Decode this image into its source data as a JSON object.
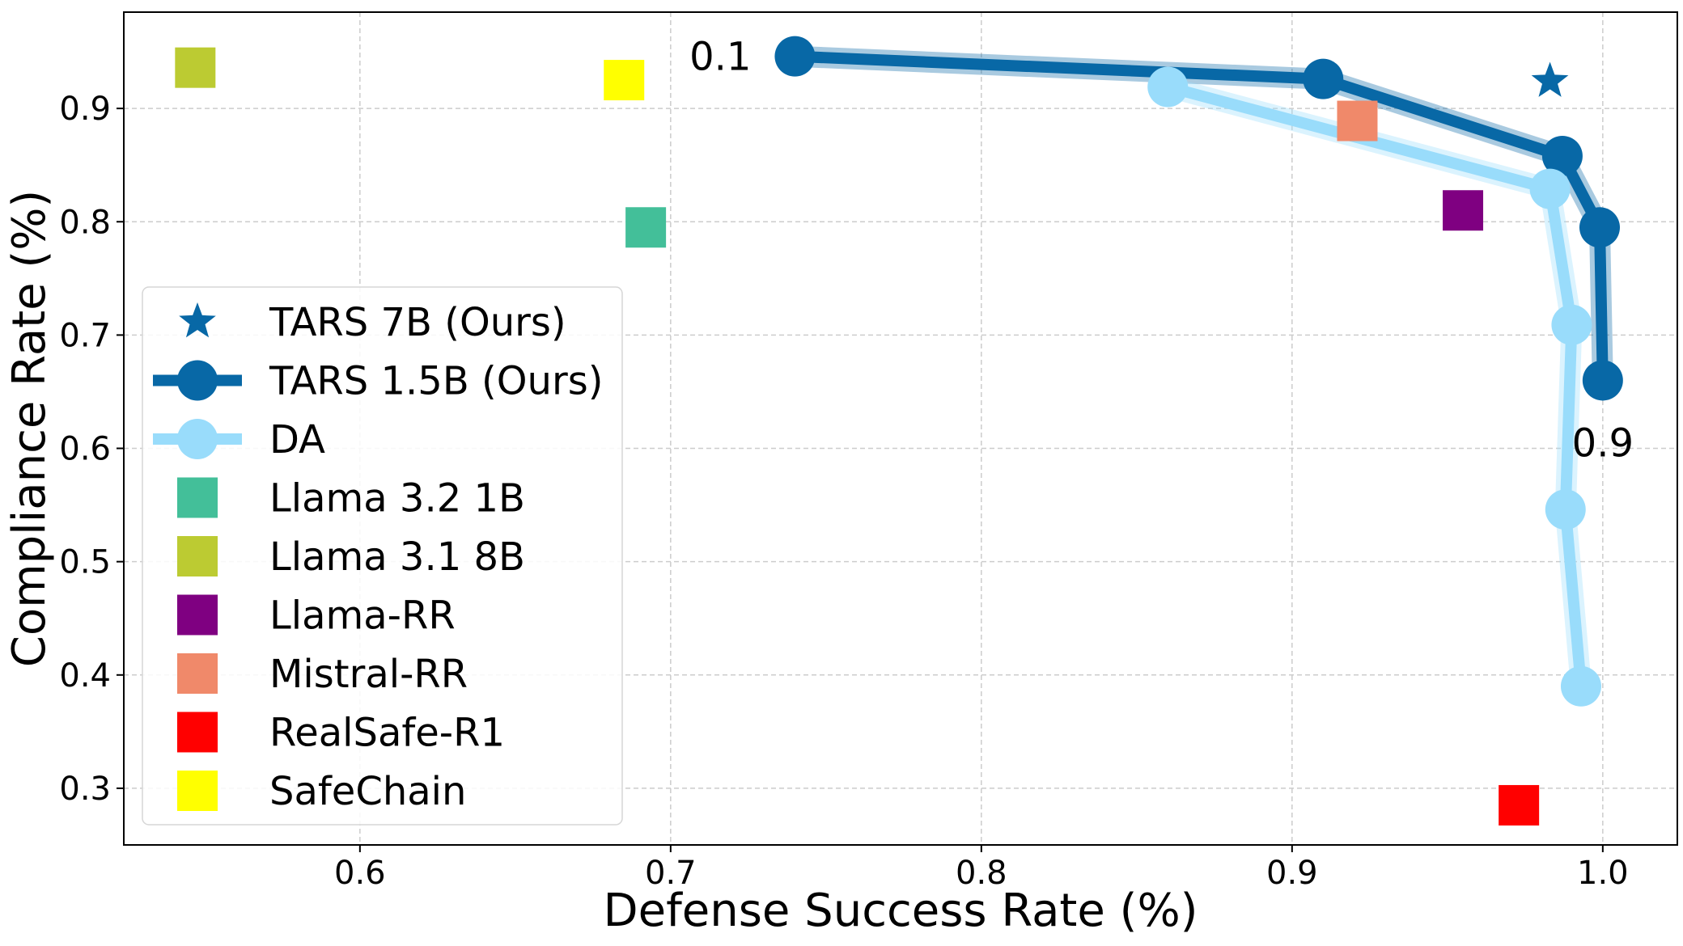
{
  "chart_data": {
    "type": "scatter",
    "xlabel": "Defense Success Rate (%)",
    "ylabel": "Compliance Rate (%)",
    "xlim": [
      0.524,
      1.024
    ],
    "ylim": [
      0.25,
      0.985
    ],
    "xticks": [
      {
        "value": 0.6,
        "label": "0.6"
      },
      {
        "value": 0.7,
        "label": "0.7"
      },
      {
        "value": 0.8,
        "label": "0.8"
      },
      {
        "value": 0.9,
        "label": "0.9"
      },
      {
        "value": 1.0,
        "label": "1.0"
      }
    ],
    "yticks": [
      {
        "value": 0.3,
        "label": "0.3"
      },
      {
        "value": 0.4,
        "label": "0.4"
      },
      {
        "value": 0.5,
        "label": "0.5"
      },
      {
        "value": 0.6,
        "label": "0.6"
      },
      {
        "value": 0.7,
        "label": "0.7"
      },
      {
        "value": 0.8,
        "label": "0.8"
      },
      {
        "value": 0.9,
        "label": "0.9"
      }
    ],
    "grid": true,
    "legend_position": "lower-left",
    "series": [
      {
        "name": "TARS 7B (Ours)",
        "kind": "star",
        "color": "#0868a6",
        "points": [
          {
            "x": 0.983,
            "y": 0.924
          }
        ]
      },
      {
        "name": "TARS 1.5B (Ours)",
        "kind": "line",
        "color": "#0868a6",
        "points": [
          {
            "x": 0.74,
            "y": 0.946
          },
          {
            "x": 0.91,
            "y": 0.926
          },
          {
            "x": 0.987,
            "y": 0.858
          },
          {
            "x": 0.999,
            "y": 0.795
          },
          {
            "x": 1.0,
            "y": 0.66
          }
        ]
      },
      {
        "name": "DA",
        "kind": "line",
        "color": "#99dcfb",
        "points": [
          {
            "x": 0.86,
            "y": 0.919
          },
          {
            "x": 0.983,
            "y": 0.829
          },
          {
            "x": 0.99,
            "y": 0.709
          },
          {
            "x": 0.988,
            "y": 0.546
          },
          {
            "x": 0.993,
            "y": 0.39
          }
        ]
      },
      {
        "name": "Llama 3.2 1B",
        "kind": "square",
        "color": "#43bf99",
        "points": [
          {
            "x": 0.692,
            "y": 0.795
          }
        ]
      },
      {
        "name": "Llama 3.1 8B",
        "kind": "square",
        "color": "#bccb32",
        "points": [
          {
            "x": 0.547,
            "y": 0.936
          }
        ]
      },
      {
        "name": "Llama-RR",
        "kind": "square",
        "color": "#7f0081",
        "points": [
          {
            "x": 0.955,
            "y": 0.81
          }
        ]
      },
      {
        "name": "Mistral-RR",
        "kind": "square",
        "color": "#f0896a",
        "points": [
          {
            "x": 0.921,
            "y": 0.889
          }
        ]
      },
      {
        "name": "RealSafe-R1",
        "kind": "square",
        "color": "#ff0000",
        "points": [
          {
            "x": 0.973,
            "y": 0.285
          }
        ]
      },
      {
        "name": "SafeChain",
        "kind": "square",
        "color": "#ffff00",
        "points": [
          {
            "x": 0.685,
            "y": 0.925
          }
        ]
      }
    ],
    "annotations": [
      {
        "text": "0.1",
        "x": 0.716,
        "y": 0.946
      },
      {
        "text": "0.9",
        "x": 1.0,
        "y": 0.605
      }
    ]
  }
}
